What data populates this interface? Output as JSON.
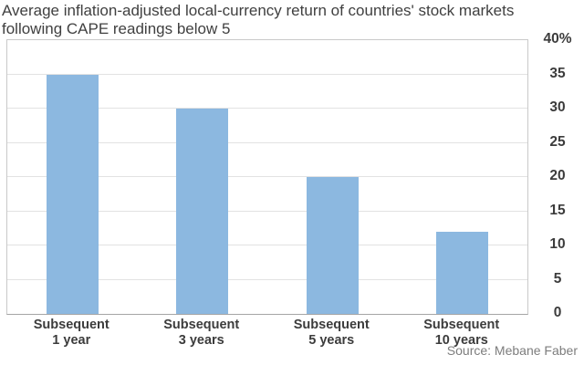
{
  "header": {
    "title_line1": "Average inflation-adjusted local-currency return of countries' stock markets",
    "title_line2": "following CAPE readings below 5"
  },
  "chart_data": {
    "type": "bar",
    "title": "Average inflation-adjusted local-currency return of countries' stock markets following CAPE readings below 5",
    "categories": [
      "Subsequent\n1 year",
      "Subsequent\n3 years",
      "Subsequent\n5 years",
      "Subsequent\n10 years"
    ],
    "values": [
      35,
      30,
      20,
      12
    ],
    "unit": "%",
    "xlabel": "",
    "ylabel": "",
    "ylim": [
      0,
      40
    ],
    "ytick_step": 5,
    "ytick_labels": [
      "40%",
      "35",
      "30",
      "25",
      "20",
      "15",
      "10",
      "5",
      "0"
    ],
    "axis_side": "right",
    "grid": true,
    "legend": "none",
    "source": "Source: Mebane Faber"
  },
  "colors": {
    "bar": "#8cb8e0",
    "grid": "#e2e2e2",
    "plot_border": "#c9c9c9",
    "axis_line": "#a5a5a5",
    "title_text": "#404040",
    "axis_text": "#3c3c3c",
    "source_text": "#7d7d7d",
    "background": "#ffffff"
  }
}
